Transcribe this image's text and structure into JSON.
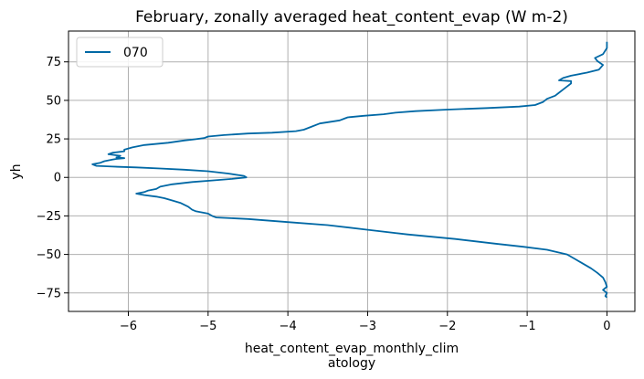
{
  "chart_data": {
    "type": "line",
    "title": "February, zonally averaged heat_content_evap (W m-2)",
    "xlabel_line1": "heat_content_evap_monthly_clim",
    "xlabel_line2": "atology",
    "ylabel": "yh",
    "xlim": [
      -6.75,
      0.35
    ],
    "ylim": [
      -87,
      95
    ],
    "x_ticks": [
      -6,
      -5,
      -4,
      -3,
      -2,
      -1,
      0
    ],
    "x_tick_labels": [
      "−6",
      "−5",
      "−4",
      "−3",
      "−2",
      "−1",
      "0"
    ],
    "y_ticks": [
      -75,
      -50,
      -25,
      0,
      25,
      50,
      75
    ],
    "y_tick_labels": [
      "−75",
      "−50",
      "−25",
      "0",
      "25",
      "50",
      "75"
    ],
    "grid": true,
    "legend_position": "top-left",
    "series": [
      {
        "name": "070",
        "color": "#0068a5",
        "points": [
          [
            0.0,
            88
          ],
          [
            0.0,
            84
          ],
          [
            -0.05,
            80
          ],
          [
            -0.15,
            77.5
          ],
          [
            -0.12,
            75.5
          ],
          [
            -0.05,
            73
          ],
          [
            -0.1,
            70
          ],
          [
            -0.25,
            68
          ],
          [
            -0.45,
            66
          ],
          [
            -0.55,
            64.5
          ],
          [
            -0.6,
            63
          ],
          [
            -0.45,
            62.5
          ],
          [
            -0.45,
            61
          ],
          [
            -0.5,
            59
          ],
          [
            -0.55,
            57
          ],
          [
            -0.6,
            55
          ],
          [
            -0.65,
            53
          ],
          [
            -0.75,
            51
          ],
          [
            -0.8,
            49
          ],
          [
            -0.9,
            47
          ],
          [
            -1.1,
            46
          ],
          [
            -1.5,
            45
          ],
          [
            -2.0,
            44
          ],
          [
            -2.4,
            43
          ],
          [
            -2.65,
            42
          ],
          [
            -2.8,
            41
          ],
          [
            -3.05,
            40
          ],
          [
            -3.25,
            39
          ],
          [
            -3.3,
            38
          ],
          [
            -3.35,
            37
          ],
          [
            -3.6,
            35
          ],
          [
            -3.7,
            33
          ],
          [
            -3.8,
            31
          ],
          [
            -3.9,
            30
          ],
          [
            -4.2,
            29
          ],
          [
            -4.5,
            28.5
          ],
          [
            -4.8,
            27.5
          ],
          [
            -5.0,
            26.5
          ],
          [
            -5.05,
            25.5
          ],
          [
            -5.2,
            24.5
          ],
          [
            -5.3,
            24
          ],
          [
            -5.5,
            22.5
          ],
          [
            -5.8,
            21
          ],
          [
            -5.95,
            19.5
          ],
          [
            -6.05,
            18
          ],
          [
            -6.05,
            17
          ],
          [
            -6.2,
            16
          ],
          [
            -6.25,
            15
          ],
          [
            -6.1,
            14
          ],
          [
            -6.15,
            13
          ],
          [
            -6.05,
            12.5
          ],
          [
            -6.15,
            12
          ],
          [
            -6.2,
            11.5
          ],
          [
            -6.3,
            10.5
          ],
          [
            -6.35,
            9.5
          ],
          [
            -6.45,
            8.5
          ],
          [
            -6.4,
            7.5
          ],
          [
            -6.2,
            7
          ],
          [
            -5.9,
            6.5
          ],
          [
            -5.6,
            5.8
          ],
          [
            -5.3,
            5
          ],
          [
            -5.0,
            4
          ],
          [
            -4.75,
            2.5
          ],
          [
            -4.55,
            1
          ],
          [
            -4.52,
            0
          ],
          [
            -4.7,
            -1
          ],
          [
            -4.95,
            -2
          ],
          [
            -5.2,
            -3
          ],
          [
            -5.45,
            -4.5
          ],
          [
            -5.6,
            -6
          ],
          [
            -5.65,
            -7.5
          ],
          [
            -5.75,
            -8.5
          ],
          [
            -5.8,
            -9.5
          ],
          [
            -5.9,
            -10.5
          ],
          [
            -5.8,
            -11.5
          ],
          [
            -5.65,
            -12.5
          ],
          [
            -5.55,
            -13.5
          ],
          [
            -5.45,
            -15
          ],
          [
            -5.35,
            -16.5
          ],
          [
            -5.25,
            -19
          ],
          [
            -5.2,
            -21
          ],
          [
            -5.15,
            -22
          ],
          [
            -5.0,
            -23.5
          ],
          [
            -4.95,
            -25
          ],
          [
            -4.9,
            -26
          ],
          [
            -4.5,
            -27
          ],
          [
            -4.0,
            -29
          ],
          [
            -3.5,
            -31
          ],
          [
            -3.0,
            -34
          ],
          [
            -2.5,
            -37
          ],
          [
            -1.9,
            -40
          ],
          [
            -1.4,
            -43
          ],
          [
            -1.05,
            -45
          ],
          [
            -0.75,
            -47
          ],
          [
            -0.5,
            -50
          ],
          [
            -0.4,
            -53
          ],
          [
            -0.3,
            -56
          ],
          [
            -0.2,
            -59
          ],
          [
            -0.12,
            -62
          ],
          [
            -0.05,
            -65
          ],
          [
            -0.02,
            -68
          ],
          [
            0.0,
            -71
          ],
          [
            -0.05,
            -73
          ],
          [
            0.0,
            -75
          ],
          [
            -0.02,
            -77
          ],
          [
            0.0,
            -78
          ]
        ]
      }
    ]
  }
}
